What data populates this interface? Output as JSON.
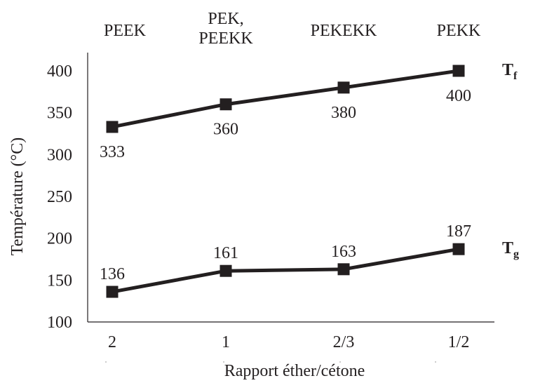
{
  "chart_data": {
    "type": "line",
    "categories": [
      "2",
      "1",
      "2/3",
      "1/2"
    ],
    "category_headers": [
      "PEEK",
      "PEK,\nPEEKK",
      "PEKEKK",
      "PEKK"
    ],
    "series": [
      {
        "name": "Tf",
        "label_main": "T",
        "label_sub": "f",
        "values": [
          333,
          360,
          380,
          400
        ],
        "label_position": "below"
      },
      {
        "name": "Tg",
        "label_main": "T",
        "label_sub": "g",
        "values": [
          136,
          161,
          163,
          187
        ],
        "label_position": "above"
      }
    ],
    "xlabel": "Rapport éther/cétone",
    "ylabel": "Température (°C)",
    "ylim": [
      100,
      400
    ],
    "yticks": [
      100,
      150,
      200,
      250,
      300,
      350,
      400
    ],
    "grid": false,
    "legend": "none",
    "colors": {
      "line": "#231f20",
      "text": "#231f20"
    }
  }
}
